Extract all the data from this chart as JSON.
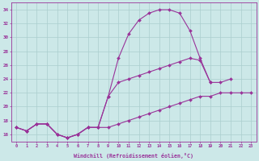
{
  "xlabel": "Windchill (Refroidissement éolien,°C)",
  "x": [
    0,
    1,
    2,
    3,
    4,
    5,
    6,
    7,
    8,
    9,
    10,
    11,
    12,
    13,
    14,
    15,
    16,
    17,
    18,
    19,
    20,
    21,
    22,
    23
  ],
  "line1": [
    17,
    16.5,
    17.5,
    17.5,
    16,
    15.5,
    16,
    17,
    17,
    21.5,
    27,
    30.5,
    32.5,
    33.5,
    34,
    34,
    33.5,
    31,
    27,
    23.5,
    null,
    null,
    null,
    null
  ],
  "line2": [
    17,
    16.5,
    17.5,
    17.5,
    16,
    15.5,
    16,
    17,
    17,
    21.5,
    23.5,
    24,
    24.5,
    25,
    25.5,
    26,
    26.5,
    27,
    26.7,
    23.5,
    23.5,
    24,
    null,
    null
  ],
  "line3": [
    17,
    16.5,
    17.5,
    17.5,
    16,
    15.5,
    16,
    17,
    17,
    17,
    17.5,
    18,
    18.5,
    19,
    19.5,
    20,
    20.5,
    21,
    21.5,
    21.5,
    22,
    22,
    22,
    22
  ],
  "color": "#993399",
  "bg_color": "#cce8e8",
  "grid_color": "#aacece",
  "ylim": [
    15,
    35
  ],
  "xlim": [
    -0.5,
    23.5
  ],
  "yticks": [
    16,
    18,
    20,
    22,
    24,
    26,
    28,
    30,
    32,
    34
  ],
  "xticks": [
    0,
    1,
    2,
    3,
    4,
    5,
    6,
    7,
    8,
    9,
    10,
    11,
    12,
    13,
    14,
    15,
    16,
    17,
    18,
    19,
    20,
    21,
    22,
    23
  ]
}
